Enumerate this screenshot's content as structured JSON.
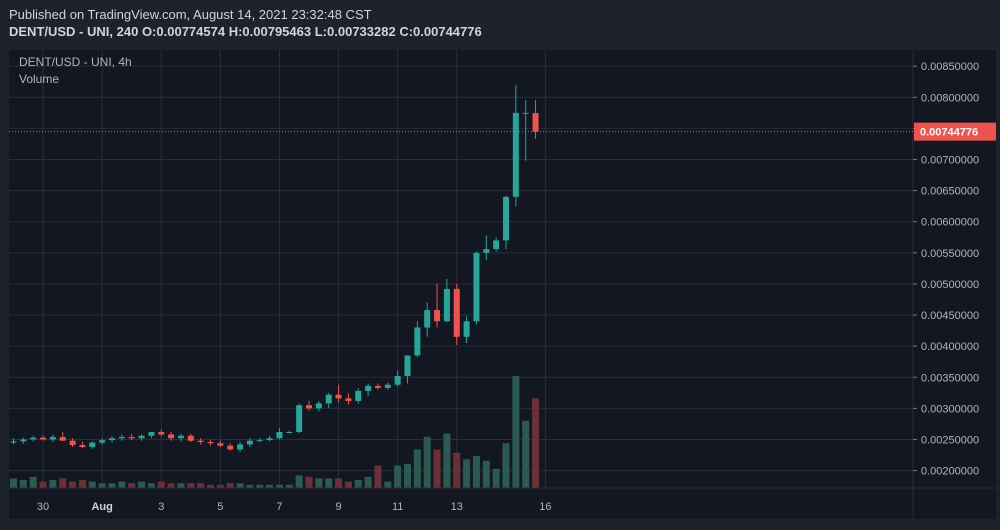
{
  "header": {
    "published": "Published on TradingView.com, August 14, 2021 23:32:48 CST",
    "symbol_line": "DENT/USD - UNI, 240",
    "open_label": "O:",
    "open": "0.00774574",
    "high_label": "H:",
    "high": "0.00795463",
    "low_label": "L:",
    "low": "0.00733282",
    "close_label": "C:",
    "close": "0.00744776"
  },
  "legend": {
    "title": "DENT/USD - UNI, 4h",
    "volume": "Volume"
  },
  "last_price_label": "0.00744776",
  "colors": {
    "background": "#131722",
    "frame": "#1e222d",
    "up": "#26a69a",
    "down": "#ef5350",
    "vol_up": "#2b5a52",
    "vol_down": "#6b2f3a",
    "grid": "#2a2e39",
    "text": "#b2b5be"
  },
  "chart_data": {
    "type": "candlestick",
    "title": "DENT/USD - UNI, 4h",
    "ylim": [
      0.00172,
      0.00876
    ],
    "ytick_labels": [
      "0.00850000",
      "0.00800000",
      "0.00750000",
      "0.00700000",
      "0.00650000",
      "0.00600000",
      "0.00550000",
      "0.00500000",
      "0.00450000",
      "0.00400000",
      "0.00350000",
      "0.00300000",
      "0.00250000",
      "0.00200000"
    ],
    "yticks": [
      0.0085,
      0.008,
      0.0075,
      0.007,
      0.0065,
      0.006,
      0.0055,
      0.005,
      0.0045,
      0.004,
      0.0035,
      0.003,
      0.0025,
      0.002
    ],
    "xtick_labels": [
      "30",
      "Aug",
      "3",
      "5",
      "7",
      "9",
      "11",
      "13",
      "16"
    ],
    "xtick_positions": [
      3,
      9,
      15,
      21,
      27,
      33,
      39,
      45,
      54
    ],
    "last_price": 0.00744776,
    "candles": [
      {
        "o": 0.00245,
        "h": 0.00252,
        "l": 0.00242,
        "c": 0.00247,
        "v": 6
      },
      {
        "o": 0.00247,
        "h": 0.00253,
        "l": 0.00243,
        "c": 0.0025,
        "v": 5
      },
      {
        "o": 0.0025,
        "h": 0.00256,
        "l": 0.00247,
        "c": 0.00253,
        "v": 7
      },
      {
        "o": 0.00253,
        "h": 0.00257,
        "l": 0.00248,
        "c": 0.0025,
        "v": 4
      },
      {
        "o": 0.0025,
        "h": 0.00258,
        "l": 0.00246,
        "c": 0.00254,
        "v": 5
      },
      {
        "o": 0.00254,
        "h": 0.00262,
        "l": 0.00248,
        "c": 0.00248,
        "v": 6
      },
      {
        "o": 0.00248,
        "h": 0.00252,
        "l": 0.00238,
        "c": 0.00241,
        "v": 4
      },
      {
        "o": 0.00241,
        "h": 0.00246,
        "l": 0.00236,
        "c": 0.00238,
        "v": 5
      },
      {
        "o": 0.00238,
        "h": 0.00247,
        "l": 0.00235,
        "c": 0.00245,
        "v": 4
      },
      {
        "o": 0.00245,
        "h": 0.00252,
        "l": 0.00242,
        "c": 0.00249,
        "v": 3
      },
      {
        "o": 0.00249,
        "h": 0.00255,
        "l": 0.00245,
        "c": 0.00252,
        "v": 3
      },
      {
        "o": 0.00252,
        "h": 0.00258,
        "l": 0.00248,
        "c": 0.00254,
        "v": 4
      },
      {
        "o": 0.00254,
        "h": 0.00259,
        "l": 0.00249,
        "c": 0.00252,
        "v": 3
      },
      {
        "o": 0.00252,
        "h": 0.00258,
        "l": 0.00248,
        "c": 0.00256,
        "v": 4
      },
      {
        "o": 0.00256,
        "h": 0.00262,
        "l": 0.00252,
        "c": 0.00262,
        "v": 3
      },
      {
        "o": 0.00262,
        "h": 0.00266,
        "l": 0.00255,
        "c": 0.00258,
        "v": 4
      },
      {
        "o": 0.00258,
        "h": 0.00262,
        "l": 0.00248,
        "c": 0.00252,
        "v": 3
      },
      {
        "o": 0.00252,
        "h": 0.00259,
        "l": 0.00247,
        "c": 0.00256,
        "v": 3
      },
      {
        "o": 0.00256,
        "h": 0.00259,
        "l": 0.00246,
        "c": 0.00248,
        "v": 3
      },
      {
        "o": 0.00248,
        "h": 0.00252,
        "l": 0.00242,
        "c": 0.00246,
        "v": 3
      },
      {
        "o": 0.00246,
        "h": 0.0025,
        "l": 0.0024,
        "c": 0.00244,
        "v": 2
      },
      {
        "o": 0.00244,
        "h": 0.00248,
        "l": 0.00238,
        "c": 0.0024,
        "v": 2
      },
      {
        "o": 0.0024,
        "h": 0.00244,
        "l": 0.00232,
        "c": 0.00234,
        "v": 3
      },
      {
        "o": 0.00234,
        "h": 0.00246,
        "l": 0.0023,
        "c": 0.00242,
        "v": 3
      },
      {
        "o": 0.00242,
        "h": 0.00252,
        "l": 0.00238,
        "c": 0.00248,
        "v": 2
      },
      {
        "o": 0.00248,
        "h": 0.00252,
        "l": 0.00246,
        "c": 0.00249,
        "v": 2
      },
      {
        "o": 0.00249,
        "h": 0.00256,
        "l": 0.00247,
        "c": 0.00252,
        "v": 2
      },
      {
        "o": 0.00252,
        "h": 0.00268,
        "l": 0.0025,
        "c": 0.00262,
        "v": 2
      },
      {
        "o": 0.00262,
        "h": 0.00264,
        "l": 0.0026,
        "c": 0.00262,
        "v": 2
      },
      {
        "o": 0.00262,
        "h": 0.00308,
        "l": 0.0026,
        "c": 0.00305,
        "v": 8
      },
      {
        "o": 0.00305,
        "h": 0.00312,
        "l": 0.00296,
        "c": 0.003,
        "v": 7
      },
      {
        "o": 0.003,
        "h": 0.00312,
        "l": 0.00295,
        "c": 0.00308,
        "v": 6
      },
      {
        "o": 0.00308,
        "h": 0.00325,
        "l": 0.003,
        "c": 0.00322,
        "v": 6
      },
      {
        "o": 0.00322,
        "h": 0.00338,
        "l": 0.0031,
        "c": 0.00316,
        "v": 6
      },
      {
        "o": 0.00316,
        "h": 0.00324,
        "l": 0.00306,
        "c": 0.00312,
        "v": 4
      },
      {
        "o": 0.00312,
        "h": 0.00332,
        "l": 0.00308,
        "c": 0.00328,
        "v": 5
      },
      {
        "o": 0.00328,
        "h": 0.0034,
        "l": 0.0032,
        "c": 0.00336,
        "v": 7
      },
      {
        "o": 0.00336,
        "h": 0.0034,
        "l": 0.0033,
        "c": 0.00333,
        "v": 14
      },
      {
        "o": 0.00333,
        "h": 0.00342,
        "l": 0.0033,
        "c": 0.00338,
        "v": 4
      },
      {
        "o": 0.00338,
        "h": 0.0036,
        "l": 0.00335,
        "c": 0.00352,
        "v": 14
      },
      {
        "o": 0.00352,
        "h": 0.00385,
        "l": 0.0034,
        "c": 0.00385,
        "v": 15
      },
      {
        "o": 0.00385,
        "h": 0.0044,
        "l": 0.00382,
        "c": 0.0043,
        "v": 24
      },
      {
        "o": 0.0043,
        "h": 0.0047,
        "l": 0.00415,
        "c": 0.00458,
        "v": 32
      },
      {
        "o": 0.00458,
        "h": 0.005,
        "l": 0.0043,
        "c": 0.0044,
        "v": 24
      },
      {
        "o": 0.0044,
        "h": 0.00508,
        "l": 0.00438,
        "c": 0.00492,
        "v": 34
      },
      {
        "o": 0.00492,
        "h": 0.005,
        "l": 0.00402,
        "c": 0.00415,
        "v": 22
      },
      {
        "o": 0.00415,
        "h": 0.00448,
        "l": 0.00405,
        "c": 0.0044,
        "v": 18
      },
      {
        "o": 0.0044,
        "h": 0.00552,
        "l": 0.00435,
        "c": 0.0055,
        "v": 20
      },
      {
        "o": 0.0055,
        "h": 0.00578,
        "l": 0.00538,
        "c": 0.00556,
        "v": 17
      },
      {
        "o": 0.00556,
        "h": 0.00575,
        "l": 0.00552,
        "c": 0.0057,
        "v": 12
      },
      {
        "o": 0.0057,
        "h": 0.00642,
        "l": 0.00556,
        "c": 0.0064,
        "v": 28
      },
      {
        "o": 0.0064,
        "h": 0.0082,
        "l": 0.00625,
        "c": 0.00775,
        "v": 70
      },
      {
        "o": 0.00775,
        "h": 0.00795,
        "l": 0.00698,
        "c": 0.00775,
        "v": 42
      },
      {
        "o": 0.00774574,
        "h": 0.00795463,
        "l": 0.00733282,
        "c": 0.00744776,
        "v": 56
      }
    ]
  }
}
